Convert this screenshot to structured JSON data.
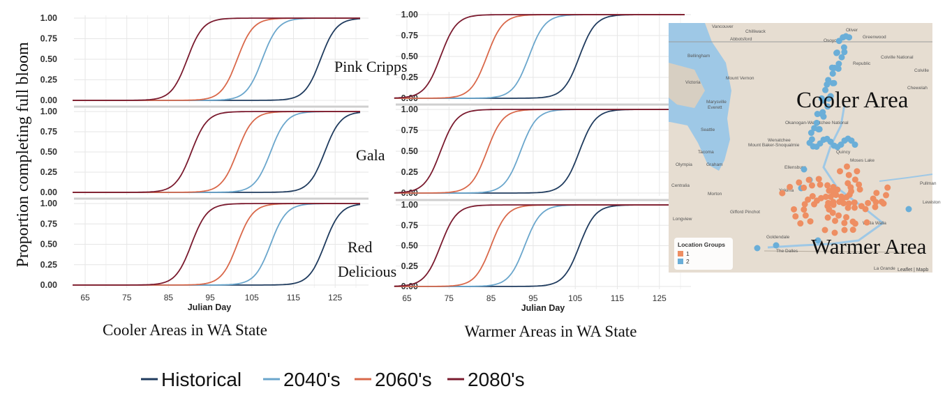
{
  "ylabel": "Proportion completing full bloom",
  "xlabel": "Julian Day",
  "colors": {
    "historical": "#1f3b5e",
    "2040s": "#6aa6cc",
    "2060s": "#d9684a",
    "2080s": "#7a1a2e",
    "grid": "#e6e6e6",
    "map_land": "#e6ddd1",
    "map_water": "#9ec8e6",
    "cooler_dots": "#6aaed8",
    "warmer_dots": "#ee8e62"
  },
  "legend": {
    "items": [
      {
        "label": "Historical",
        "color": "#1f3b5e"
      },
      {
        "label": "2040's",
        "color": "#6aa6cc"
      },
      {
        "label": "2060's",
        "color": "#d9684a"
      },
      {
        "label": "2080's",
        "color": "#7a1a2e"
      }
    ]
  },
  "chart_data": [
    {
      "type": "line",
      "title": "Cooler Areas in WA State",
      "xlabel": "Julian Day",
      "ylabel": "Proportion completing full bloom",
      "xlim": [
        62,
        131
      ],
      "ylim": [
        0,
        1
      ],
      "xticks": [
        65,
        75,
        85,
        95,
        105,
        115,
        125
      ],
      "yticks": [
        "0.00",
        "0.25",
        "0.50",
        "0.75",
        "1.00"
      ],
      "grid": true,
      "legend": "bottom",
      "panels": [
        {
          "label": "Pink Cripps",
          "series": [
            {
              "name": "Historical",
              "midpoint": 121.5
            },
            {
              "name": "2040's",
              "midpoint": 107.5
            },
            {
              "name": "2060's",
              "midpoint": 101.5
            },
            {
              "name": "2080's",
              "midpoint": 89.5
            }
          ]
        },
        {
          "label": "Gala",
          "series": [
            {
              "name": "Historical",
              "midpoint": 122.5
            },
            {
              "name": "2040's",
              "midpoint": 109.5
            },
            {
              "name": "2060's",
              "midpoint": 101.5
            },
            {
              "name": "2080's",
              "midpoint": 90.5
            }
          ]
        },
        {
          "label": "Red Delicious",
          "series": [
            {
              "name": "Historical",
              "midpoint": 122.5
            },
            {
              "name": "2040's",
              "midpoint": 109.5
            },
            {
              "name": "2060's",
              "midpoint": 101.5
            },
            {
              "name": "2080's",
              "midpoint": 90.5
            }
          ]
        }
      ]
    },
    {
      "type": "line",
      "title": "Warmer Areas in WA State",
      "xlabel": "Julian Day",
      "ylabel": "Proportion completing full bloom",
      "xlim": [
        62,
        131
      ],
      "ylim": [
        0,
        1
      ],
      "xticks": [
        65,
        75,
        85,
        95,
        105,
        115,
        125
      ],
      "yticks": [
        "0.00",
        "0.25",
        "0.50",
        "0.75",
        "1.00"
      ],
      "grid": true,
      "legend": "bottom",
      "panels": [
        {
          "label": "Pink Cripps",
          "series": [
            {
              "name": "Historical",
              "midpoint": 106
            },
            {
              "name": "2040's",
              "midpoint": 94
            },
            {
              "name": "2060's",
              "midpoint": 84
            },
            {
              "name": "2080's",
              "midpoint": 73
            }
          ]
        },
        {
          "label": "Gala",
          "series": [
            {
              "name": "Historical",
              "midpoint": 106
            },
            {
              "name": "2040's",
              "midpoint": 92
            },
            {
              "name": "2060's",
              "midpoint": 84
            },
            {
              "name": "2080's",
              "midpoint": 73
            }
          ]
        },
        {
          "label": "Red Delicious",
          "series": [
            {
              "name": "Historical",
              "midpoint": 106
            },
            {
              "name": "2040's",
              "midpoint": 93
            },
            {
              "name": "2060's",
              "midpoint": 85
            },
            {
              "name": "2080's",
              "midpoint": 73
            }
          ]
        }
      ]
    }
  ],
  "map": {
    "cooler_label": "Cooler Area",
    "warmer_label": "Warmer Area",
    "legend_title": "Location Groups",
    "legend_items": [
      {
        "label": "1",
        "color": "#ee8e62"
      },
      {
        "label": "2",
        "color": "#6aaed8"
      }
    ],
    "attribution": "Leaflet | Mapb",
    "places": [
      "Vancouver",
      "Chilliwack",
      "Abbotsford",
      "Oliver",
      "Greenwood",
      "Osoyoos",
      "Bellingham",
      "Victoria",
      "Mount Vernon",
      "Colville National Forest",
      "Republic",
      "Colville",
      "Chewelah",
      "Marysville",
      "Everett",
      "Seattle",
      "Okanogan-Wenatchee National Forest",
      "Mount Baker-Snoqualmie National Forest",
      "Wenatchee",
      "Quincy",
      "Moses Lake",
      "Olympia",
      "Graham",
      "Ellensburg",
      "Tacoma",
      "Centralia",
      "Morton",
      "Yakima",
      "Longview",
      "Gifford Pinchot National Forest",
      "Walla Walla",
      "Goldendale",
      "The Dalles",
      "La Grande",
      "Pullman",
      "Lewiston"
    ]
  }
}
